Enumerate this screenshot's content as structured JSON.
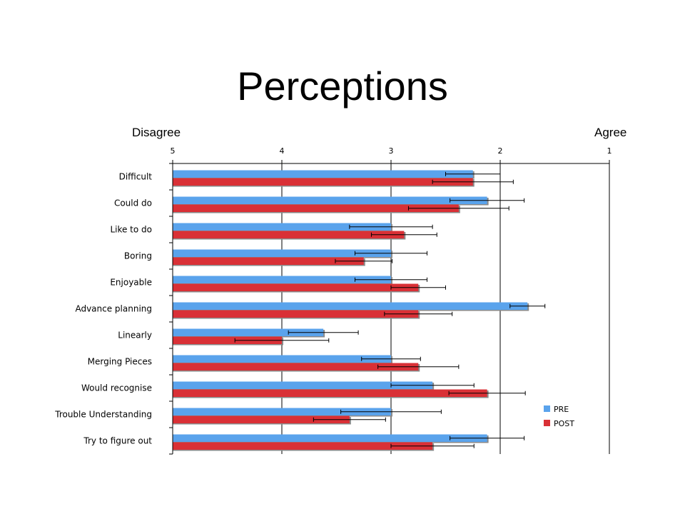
{
  "slide": {
    "title": "Perceptions",
    "left_label": "Disagree",
    "right_label": "Agree"
  },
  "chart_data": {
    "type": "bar",
    "orientation": "horizontal",
    "xlim": [
      5,
      1
    ],
    "x_ticks": [
      "5",
      "4",
      "3",
      "2",
      "1"
    ],
    "grid": "vertical major gridlines",
    "legend_position": "bottom-right",
    "categories": [
      "Difficult",
      "Could do",
      "Like to do",
      "Boring",
      "Enjoyable",
      "Advance planning",
      "Linearly",
      "Merging Pieces",
      "Would recognise",
      "Trouble Understanding",
      "Try to figure out"
    ],
    "series": [
      {
        "name": "PRE",
        "color": "#5aa3ec",
        "values": [
          2.25,
          2.12,
          3.0,
          3.0,
          3.0,
          1.75,
          3.62,
          3.0,
          2.62,
          3.0,
          2.12
        ],
        "error": [
          0.25,
          0.34,
          0.38,
          0.33,
          0.33,
          0.16,
          0.32,
          0.27,
          0.38,
          0.46,
          0.34
        ]
      },
      {
        "name": "POST",
        "color": "#d93036",
        "values": [
          2.25,
          2.38,
          2.88,
          3.25,
          2.75,
          2.75,
          4.0,
          2.75,
          2.12,
          3.38,
          2.62
        ],
        "error": [
          0.37,
          0.46,
          0.3,
          0.26,
          0.25,
          0.31,
          0.43,
          0.37,
          0.35,
          0.33,
          0.38
        ]
      }
    ]
  }
}
